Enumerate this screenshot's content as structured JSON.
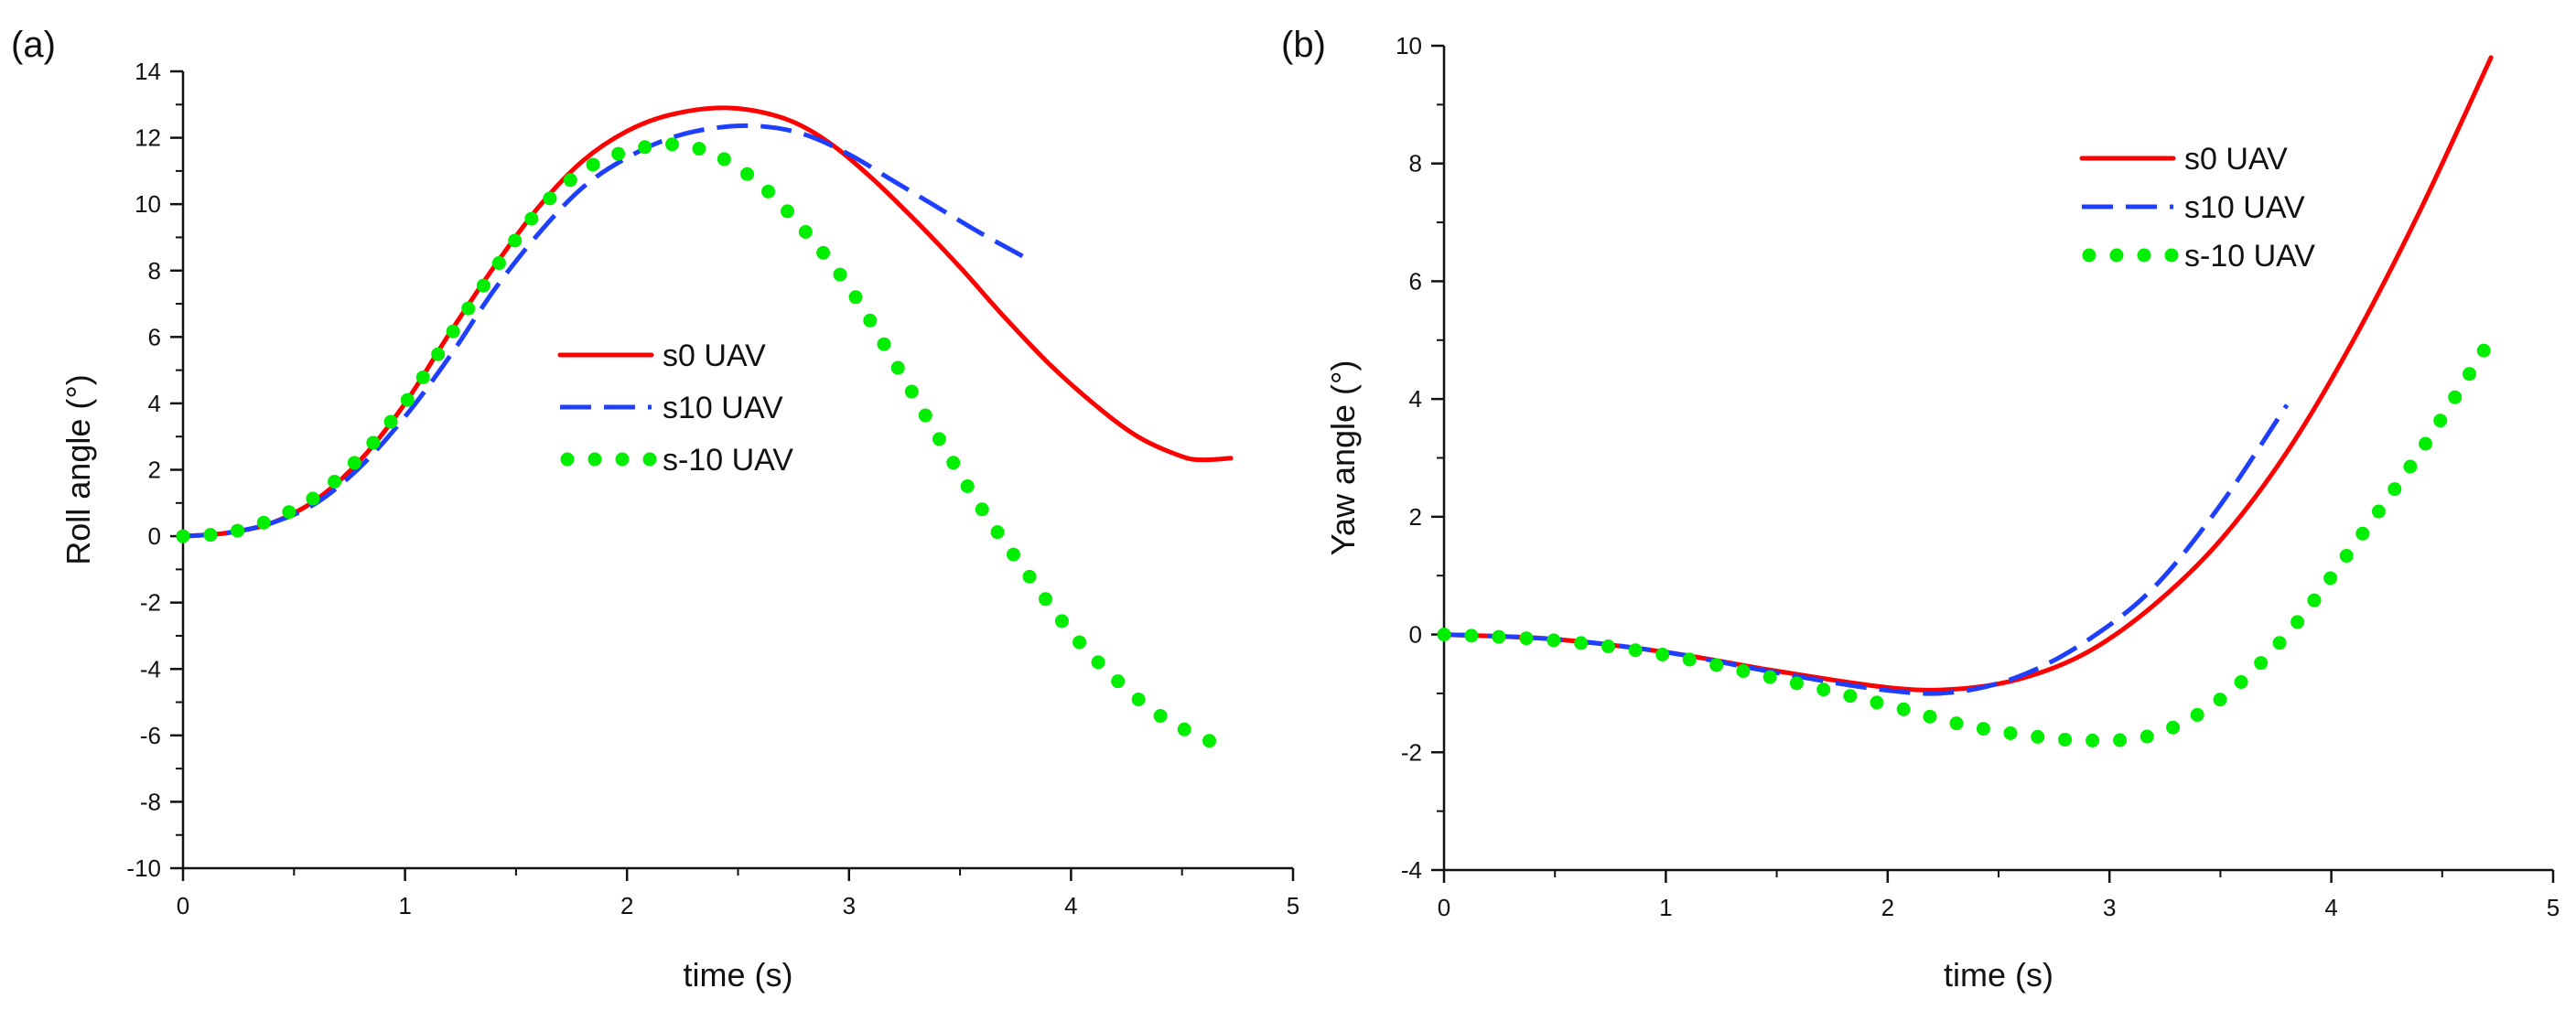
{
  "chart_data": [
    {
      "panel": "(a)",
      "type": "line",
      "xlabel": "time (s)",
      "ylabel": "Roll angle (°)",
      "xlim": [
        0,
        5
      ],
      "ylim": [
        -10,
        14
      ],
      "x_ticks": [
        0,
        1,
        2,
        3,
        4,
        5
      ],
      "y_ticks": [
        -10,
        -8,
        -6,
        -4,
        -2,
        0,
        2,
        4,
        6,
        8,
        10,
        12,
        14
      ],
      "legend_position": "center",
      "series": [
        {
          "name": "s0 UAV",
          "color": "#ff0000",
          "style": "solid",
          "x": [
            0,
            0.2,
            0.4,
            0.6,
            0.8,
            1.0,
            1.2,
            1.4,
            1.6,
            1.8,
            2.0,
            2.2,
            2.45,
            2.7,
            2.9,
            3.1,
            3.3,
            3.5,
            3.7,
            3.9,
            4.1,
            4.3,
            4.5,
            4.6,
            4.72
          ],
          "y": [
            0,
            0.1,
            0.4,
            1.1,
            2.3,
            4.0,
            6.1,
            8.1,
            9.9,
            11.3,
            12.2,
            12.7,
            12.9,
            12.6,
            11.9,
            10.8,
            9.5,
            8.1,
            6.6,
            5.2,
            4.0,
            3.0,
            2.4,
            2.3,
            2.35
          ]
        },
        {
          "name": "s10 UAV",
          "color": "#1f3fff",
          "style": "dashed",
          "x": [
            0,
            0.2,
            0.4,
            0.6,
            0.8,
            1.0,
            1.2,
            1.4,
            1.6,
            1.8,
            2.0,
            2.2,
            2.4,
            2.6,
            2.8,
            3.0,
            3.2,
            3.4,
            3.6,
            3.82
          ],
          "y": [
            0,
            0.1,
            0.4,
            1.0,
            2.1,
            3.6,
            5.4,
            7.4,
            9.1,
            10.5,
            11.4,
            12.0,
            12.3,
            12.35,
            12.1,
            11.5,
            10.7,
            9.9,
            9.1,
            8.3
          ]
        },
        {
          "name": "s-10 UAV",
          "color": "#00ee00",
          "style": "dotted",
          "x": [
            0,
            0.2,
            0.4,
            0.6,
            0.8,
            1.0,
            1.2,
            1.4,
            1.6,
            1.8,
            2.0,
            2.2,
            2.3,
            2.4,
            2.6,
            2.8,
            3.0,
            3.2,
            3.4,
            3.6,
            3.8,
            4.0,
            4.2,
            4.4,
            4.6,
            4.7
          ],
          "y": [
            0,
            0.1,
            0.5,
            1.2,
            2.4,
            4.0,
            6.0,
            8.0,
            9.8,
            11.0,
            11.6,
            11.8,
            11.7,
            11.5,
            10.6,
            9.2,
            7.5,
            5.3,
            3.0,
            0.8,
            -1.1,
            -2.9,
            -4.3,
            -5.4,
            -6.1,
            -6.3
          ]
        }
      ]
    },
    {
      "panel": "(b)",
      "type": "line",
      "xlabel": "time (s)",
      "ylabel": "Yaw angle (°)",
      "xlim": [
        0,
        5
      ],
      "ylim": [
        -4,
        10
      ],
      "x_ticks": [
        0,
        1,
        2,
        3,
        4,
        5
      ],
      "y_ticks": [
        -4,
        -2,
        0,
        2,
        4,
        6,
        8,
        10
      ],
      "legend_position": "top-center",
      "series": [
        {
          "name": "s0 UAV",
          "color": "#ff0000",
          "style": "solid",
          "x": [
            0,
            0.5,
            1.0,
            1.5,
            2.0,
            2.3,
            2.6,
            2.9,
            3.2,
            3.5,
            3.8,
            4.1,
            4.4,
            4.72
          ],
          "y": [
            0,
            -0.08,
            -0.3,
            -0.62,
            -0.9,
            -0.93,
            -0.75,
            -0.3,
            0.5,
            1.6,
            3.1,
            5.0,
            7.2,
            9.8
          ]
        },
        {
          "name": "s10 UAV",
          "color": "#1f3fff",
          "style": "dashed",
          "x": [
            0,
            0.5,
            1.0,
            1.5,
            2.0,
            2.3,
            2.6,
            2.9,
            3.2,
            3.5,
            3.8
          ],
          "y": [
            0,
            -0.08,
            -0.3,
            -0.65,
            -0.95,
            -0.98,
            -0.7,
            -0.1,
            0.8,
            2.2,
            3.9
          ]
        },
        {
          "name": "s-10 UAV",
          "color": "#00ee00",
          "style": "dotted",
          "x": [
            0,
            0.5,
            1.0,
            1.5,
            2.0,
            2.3,
            2.6,
            2.9,
            3.2,
            3.5,
            3.8,
            4.1,
            4.4,
            4.7
          ],
          "y": [
            0,
            -0.1,
            -0.35,
            -0.75,
            -1.2,
            -1.5,
            -1.7,
            -1.8,
            -1.7,
            -1.1,
            0.0,
            1.5,
            3.1,
            4.9
          ]
        }
      ]
    }
  ]
}
